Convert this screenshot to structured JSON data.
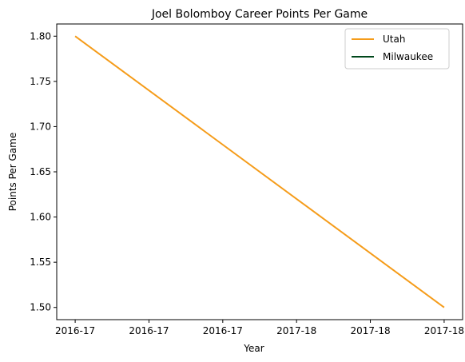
{
  "chart_data": {
    "type": "line",
    "title": "Joel Bolomboy Career Points Per Game",
    "xlabel": "Year",
    "ylabel": "Points Per Game",
    "x_ticks": [
      "2016-17",
      "2016-17",
      "2016-17",
      "2017-18",
      "2017-18",
      "2017-18"
    ],
    "y_ticks": [
      "1.50",
      "1.55",
      "1.60",
      "1.65",
      "1.70",
      "1.75",
      "1.80"
    ],
    "ylim": [
      1.4865,
      1.8135
    ],
    "grid": false,
    "legend_position": "top-right",
    "series": [
      {
        "name": "Utah",
        "color": "#f59c1a",
        "x": [
          0,
          5
        ],
        "y": [
          1.8,
          1.5
        ]
      },
      {
        "name": "Milwaukee",
        "color": "#00471b",
        "x": [],
        "y": []
      }
    ]
  }
}
